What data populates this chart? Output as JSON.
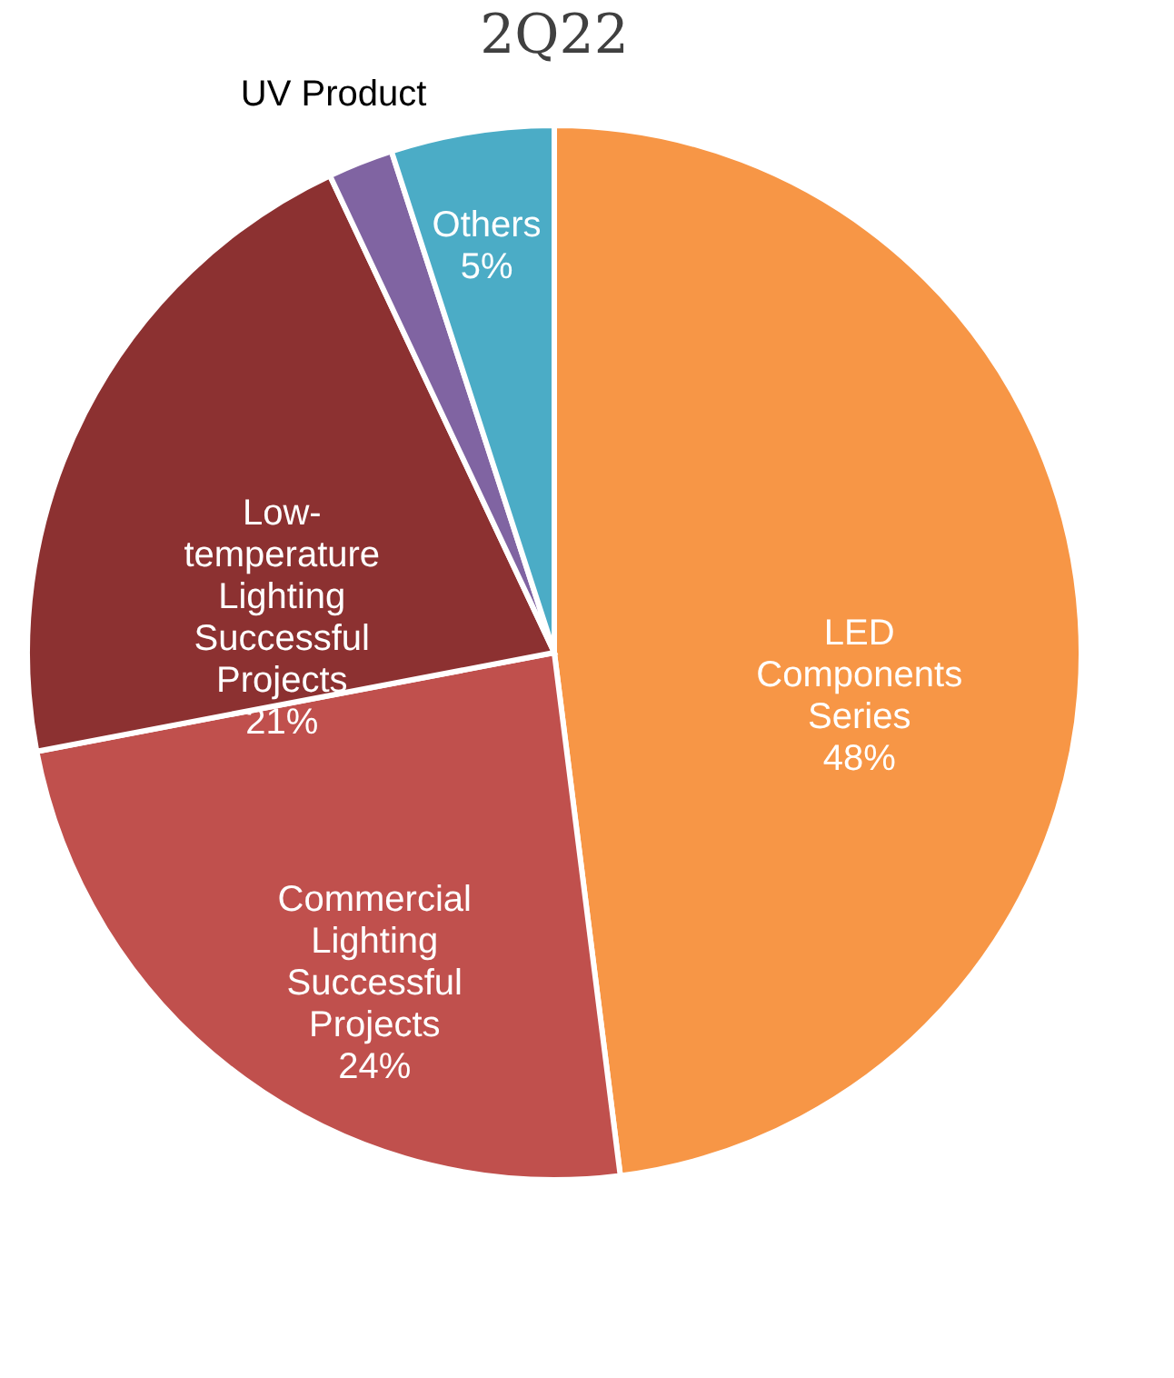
{
  "chart_data": {
    "type": "pie",
    "title": "2Q22",
    "categories": [
      "LED Components Series",
      "Commercial Lighting Successful Projects",
      "Low-temperature Lighting Successful Projects",
      "UV Product",
      "Others"
    ],
    "values": [
      48,
      24,
      21,
      2,
      5
    ],
    "value_labels": [
      "48%",
      "24%",
      "21%",
      null,
      "5%"
    ],
    "colors": [
      "#f79646",
      "#c0504d",
      "#8c3131",
      "#8064a2",
      "#4bacc6"
    ],
    "legend": false
  }
}
